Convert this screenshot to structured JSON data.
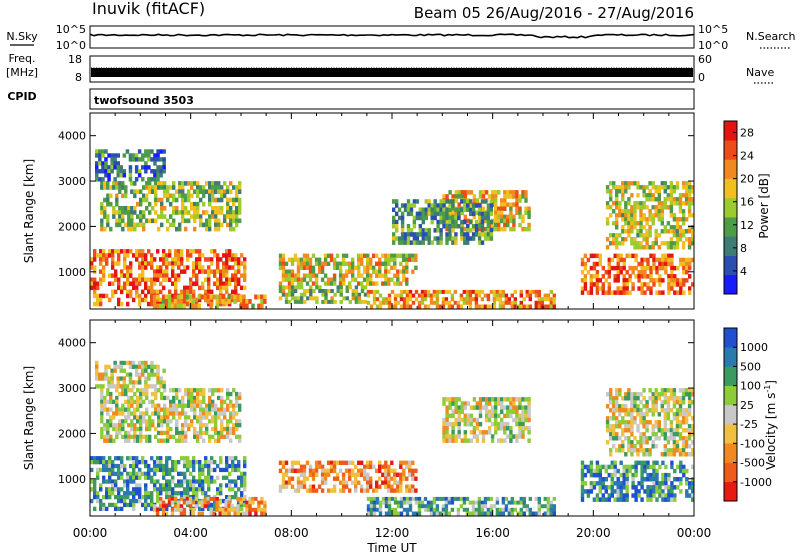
{
  "header": {
    "station": "Inuvik (fitACF)",
    "beam_dates": "Beam 05 26/Aug/2016 - 27/Aug/2016"
  },
  "strip1": {
    "left_label": "N.Sky",
    "left_ticks": [
      "10^5",
      "10^0"
    ],
    "right_ticks": [
      "10^5",
      "10^0"
    ],
    "right_label": "N.Search"
  },
  "strip2": {
    "left_label_top": "Freq.",
    "left_label_bottom": "[MHz]",
    "left_ticks": [
      "18",
      "8"
    ],
    "right_ticks": [
      "60",
      "0"
    ],
    "right_label": "Nave"
  },
  "cpid": {
    "label": "CPID",
    "value": "twofsound 3503"
  },
  "chart_data": [
    {
      "type": "heatmap",
      "quantity": "Power",
      "ylabel": "Slant Range [km]",
      "ylim": [
        180,
        4500
      ],
      "yticks": [
        "1000",
        "2000",
        "3000",
        "4000"
      ],
      "xlim_hours": [
        0,
        24
      ],
      "colorbar_label": "Power [dB]",
      "colorbar_ticks": [
        "4",
        "8",
        "12",
        "16",
        "20",
        "24",
        "28"
      ],
      "colorbar_ticks_values": [
        4,
        8,
        12,
        16,
        20,
        24,
        28
      ],
      "colorbar_range": [
        0,
        30
      ],
      "colors": [
        "#1a1aff",
        "#2a4fb0",
        "#3e7d74",
        "#4e9b48",
        "#9ccb2e",
        "#f0c020",
        "#f08a20",
        "#ef4a1a",
        "#e41414"
      ],
      "echo_regions": [
        {
          "t0": 0.0,
          "t1": 6.2,
          "r0": 250,
          "r1": 1500,
          "level": 0.78
        },
        {
          "t0": 0.4,
          "t1": 6.0,
          "r0": 1900,
          "r1": 3000,
          "level": 0.48
        },
        {
          "t0": 0.2,
          "t1": 3.0,
          "r0": 3000,
          "r1": 3700,
          "level": 0.25
        },
        {
          "t0": 2.5,
          "t1": 7.0,
          "r0": 200,
          "r1": 500,
          "level": 0.65
        },
        {
          "t0": 7.5,
          "t1": 13.0,
          "r0": 700,
          "r1": 1400,
          "level": 0.6
        },
        {
          "t0": 7.5,
          "t1": 11.0,
          "r0": 300,
          "r1": 700,
          "level": 0.45
        },
        {
          "t0": 11.0,
          "t1": 18.5,
          "r0": 200,
          "r1": 600,
          "level": 0.7
        },
        {
          "t0": 14.0,
          "t1": 17.5,
          "r0": 1900,
          "r1": 2800,
          "level": 0.62
        },
        {
          "t0": 12.0,
          "t1": 16.0,
          "r0": 1600,
          "r1": 2600,
          "level": 0.35
        },
        {
          "t0": 19.5,
          "t1": 24.0,
          "r0": 500,
          "r1": 1400,
          "level": 0.78
        },
        {
          "t0": 20.5,
          "t1": 24.0,
          "r0": 1500,
          "r1": 3000,
          "level": 0.55
        }
      ]
    },
    {
      "type": "heatmap",
      "quantity": "Velocity",
      "ylabel": "Slant Range [km]",
      "ylim": [
        180,
        4500
      ],
      "yticks": [
        "1000",
        "2000",
        "3000",
        "4000"
      ],
      "xlim_hours": [
        0,
        24
      ],
      "xticks": [
        "00:00",
        "04:00",
        "08:00",
        "12:00",
        "16:00",
        "20:00",
        "00:00"
      ],
      "xlabel": "Time UT",
      "colorbar_label": "Velocity [m s",
      "colorbar_label_exp": "-1",
      "colorbar_label_end": "]",
      "colorbar_ticks": [
        "1000",
        "500",
        "100",
        "25",
        "-25",
        "-100",
        "-500",
        "-1000"
      ],
      "colors": [
        "#2050d0",
        "#2a7ab0",
        "#3a9a60",
        "#8ccc3a",
        "#c8c8c8",
        "#f0c040",
        "#f08a20",
        "#f05a1a",
        "#e81a14"
      ],
      "echo_regions": [
        {
          "t0": 0.0,
          "t1": 6.2,
          "r0": 300,
          "r1": 1500,
          "level": 0.25
        },
        {
          "t0": 0.4,
          "t1": 6.0,
          "r0": 1800,
          "r1": 3000,
          "level": 0.5
        },
        {
          "t0": 0.2,
          "t1": 3.0,
          "r0": 3000,
          "r1": 3600,
          "level": 0.5
        },
        {
          "t0": 2.5,
          "t1": 7.0,
          "r0": 200,
          "r1": 600,
          "level": 0.7
        },
        {
          "t0": 7.5,
          "t1": 13.0,
          "r0": 700,
          "r1": 1400,
          "level": 0.7
        },
        {
          "t0": 11.0,
          "t1": 18.5,
          "r0": 200,
          "r1": 600,
          "level": 0.3
        },
        {
          "t0": 14.0,
          "t1": 17.5,
          "r0": 1800,
          "r1": 2800,
          "level": 0.5
        },
        {
          "t0": 19.5,
          "t1": 24.0,
          "r0": 500,
          "r1": 1400,
          "level": 0.25
        },
        {
          "t0": 20.5,
          "t1": 24.0,
          "r0": 1500,
          "r1": 3000,
          "level": 0.5
        }
      ]
    }
  ]
}
